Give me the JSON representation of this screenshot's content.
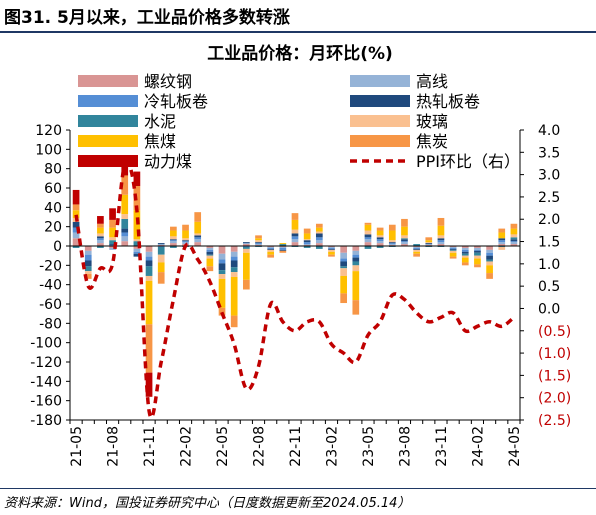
{
  "figure_title": "图31. 5月以来，工业品价格多数转涨",
  "source": "资料来源：Wind，国投证券研究中心（日度数据更新至2024.05.14）",
  "colors": {
    "luowengang": "#d99594",
    "gaoxian": "#95b3d7",
    "lengzha": "#558ed5",
    "rezha": "#1f497d",
    "shuini": "#31859c",
    "boli": "#fac090",
    "jiaomei": "#ffc000",
    "jiaotan": "#f79646",
    "donglimei": "#c00000",
    "ppi": "#c00000",
    "title_rule": "#1f3864"
  },
  "chart_data": {
    "type": "bar",
    "stacked": true,
    "title": "工业品价格：月环比(%)",
    "x": [
      "21-05",
      "21-06",
      "21-07",
      "21-08",
      "21-09",
      "21-10",
      "21-11",
      "21-12",
      "22-01",
      "22-02",
      "22-03",
      "22-04",
      "22-05",
      "22-06",
      "22-07",
      "22-08",
      "22-09",
      "22-10",
      "22-11",
      "22-12",
      "23-01",
      "23-02",
      "23-03",
      "23-04",
      "23-05",
      "23-06",
      "23-07",
      "23-08",
      "23-09",
      "23-10",
      "23-11",
      "23-12",
      "24-01",
      "24-02",
      "24-03",
      "24-04",
      "24-05"
    ],
    "x_tick_labels": [
      "21-05",
      "21-08",
      "21-11",
      "22-02",
      "22-05",
      "22-08",
      "22-11",
      "23-02",
      "23-05",
      "23-08",
      "23-11",
      "24-02",
      "24-05"
    ],
    "y_left": {
      "lim": [
        -180,
        120
      ],
      "ticks": [
        120,
        100,
        80,
        60,
        40,
        20,
        0,
        -20,
        -40,
        -60,
        -80,
        -100,
        -120,
        -140,
        -160,
        -180
      ]
    },
    "y_right": {
      "lim": [
        -2.5,
        4.0
      ],
      "ticks": [
        4.0,
        3.5,
        3.0,
        2.5,
        2.0,
        1.5,
        1.0,
        0.5,
        0.0,
        -0.5,
        -1.0,
        -1.5,
        -2.0,
        -2.5
      ],
      "tick_labels": [
        "4.0",
        "3.5",
        "3.0",
        "2.5",
        "2.0",
        "1.5",
        "1.0",
        "0.5",
        "0.0",
        "(0.5)",
        "(1.0)",
        "(1.5)",
        "(2.0)",
        "(2.5)"
      ]
    },
    "legend_placement": "top",
    "legend": [
      "螺纹钢",
      "高线",
      "冷轧板卷",
      "热轧板卷",
      "水泥",
      "玻璃",
      "焦煤",
      "焦炭",
      "动力煤",
      "PPI环比（右）"
    ],
    "series": [
      {
        "name": "螺纹钢",
        "color_key": "luowengang",
        "values": [
          8,
          -5,
          3,
          -2,
          5,
          -3,
          -6,
          1,
          3,
          2,
          4,
          -2,
          -8,
          -6,
          2,
          1,
          -1,
          -1,
          4,
          1,
          3,
          -1,
          -7,
          -5,
          4,
          3,
          1,
          2,
          -1,
          1,
          2,
          -1,
          -2,
          -2,
          -4,
          2,
          2
        ]
      },
      {
        "name": "高线",
        "color_key": "gaoxian",
        "values": [
          6,
          -4,
          3,
          -2,
          5,
          -3,
          -5,
          1,
          2,
          2,
          3,
          -2,
          -6,
          -5,
          1,
          1,
          -1,
          -1,
          3,
          1,
          3,
          -1,
          -6,
          -4,
          3,
          2,
          1,
          2,
          -1,
          1,
          2,
          -1,
          -2,
          -2,
          -3,
          2,
          2
        ]
      },
      {
        "name": "冷轧板卷",
        "color_key": "lengzha",
        "values": [
          5,
          -6,
          2,
          1,
          4,
          -2,
          -4,
          -1,
          1,
          1,
          2,
          -2,
          -4,
          -4,
          -1,
          1,
          -1,
          -2,
          3,
          2,
          3,
          -1,
          -3,
          -3,
          2,
          2,
          1,
          1,
          -1,
          0,
          2,
          -1,
          -2,
          -1,
          -3,
          2,
          1
        ]
      },
      {
        "name": "热轧板卷",
        "color_key": "rezha",
        "values": [
          6,
          -6,
          2,
          1,
          4,
          -3,
          -6,
          1,
          1,
          1,
          2,
          -3,
          -7,
          -7,
          1,
          1,
          -1,
          -1,
          3,
          2,
          4,
          -1,
          -5,
          -4,
          3,
          2,
          1,
          2,
          -1,
          1,
          2,
          -1,
          -2,
          -2,
          -4,
          2,
          2
        ]
      },
      {
        "name": "水泥",
        "color_key": "shuini",
        "values": [
          -2,
          -5,
          -2,
          4,
          10,
          5,
          -10,
          -8,
          -2,
          -1,
          0,
          -1,
          -4,
          -5,
          -2,
          -1,
          0,
          2,
          -1,
          -2,
          -3,
          0,
          -2,
          -4,
          -3,
          -2,
          -1,
          1,
          2,
          -1,
          -1,
          -1,
          -2,
          -3,
          -2,
          -1,
          2
        ]
      },
      {
        "name": "玻璃",
        "color_key": "boli",
        "values": [
          4,
          -3,
          3,
          3,
          5,
          2,
          -5,
          -8,
          3,
          2,
          2,
          -3,
          -5,
          -5,
          -4,
          2,
          -2,
          0,
          4,
          1,
          2,
          -2,
          -8,
          -6,
          4,
          2,
          2,
          3,
          -2,
          1,
          3,
          -2,
          -2,
          -3,
          -4,
          -3,
          3
        ]
      },
      {
        "name": "焦煤",
        "color_key": "jiaomei",
        "values": [
          8,
          0,
          6,
          10,
          20,
          30,
          -45,
          -10,
          6,
          8,
          12,
          -8,
          -30,
          -40,
          -28,
          2,
          -3,
          1,
          10,
          6,
          4,
          -3,
          -18,
          -30,
          6,
          5,
          10,
          9,
          -2,
          2,
          10,
          -4,
          -5,
          -6,
          -8,
          6,
          6
        ]
      },
      {
        "name": "焦炭",
        "color_key": "jiaotan",
        "values": [
          6,
          -5,
          4,
          8,
          20,
          25,
          -50,
          -12,
          4,
          6,
          10,
          -5,
          -8,
          -12,
          -10,
          3,
          -3,
          -2,
          7,
          5,
          4,
          -2,
          -10,
          -15,
          2,
          3,
          6,
          8,
          -3,
          3,
          8,
          -2,
          -3,
          -3,
          -6,
          4,
          5
        ]
      },
      {
        "name": "动力煤",
        "color_key": "donglimei",
        "values": [
          15,
          0,
          8,
          12,
          12,
          15,
          -25,
          0,
          0,
          0,
          0,
          0,
          0,
          0,
          0,
          0,
          0,
          0,
          0,
          0,
          0,
          0,
          0,
          0,
          0,
          0,
          0,
          0,
          0,
          0,
          0,
          0,
          0,
          0,
          0,
          0,
          0
        ]
      },
      {
        "name": "PPI环比（右）",
        "type": "line",
        "axis": "right",
        "color_key": "ppi",
        "values": [
          2.1,
          0.5,
          0.9,
          1.0,
          3.2,
          2.2,
          -2.3,
          -1.2,
          0.2,
          1.4,
          1.1,
          0.6,
          -0.1,
          -0.8,
          -1.8,
          -1.3,
          0.1,
          -0.3,
          -0.5,
          -0.3,
          -0.3,
          -0.8,
          -1.0,
          -1.2,
          -0.6,
          -0.3,
          0.3,
          0.2,
          -0.1,
          -0.3,
          -0.2,
          -0.1,
          -0.5,
          -0.4,
          -0.3,
          -0.4,
          -0.2
        ]
      }
    ]
  }
}
